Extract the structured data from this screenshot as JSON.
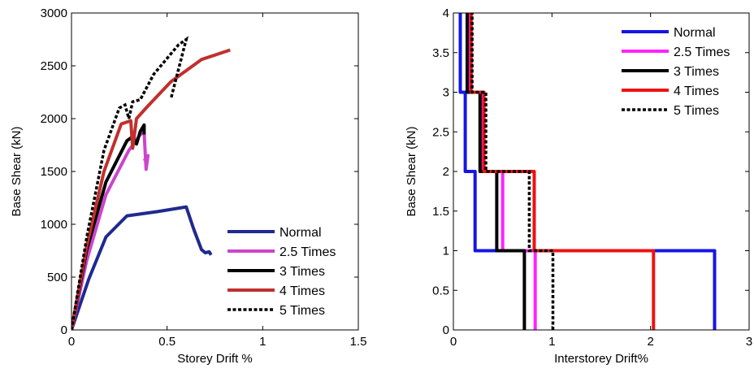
{
  "chart_data": [
    {
      "type": "line",
      "xlabel": "Storey Drift %",
      "ylabel": "Base Shear (kN)",
      "xlim": [
        0,
        1.5
      ],
      "ylim": [
        0,
        3000
      ],
      "xticks": [
        "0",
        "0.5",
        "1",
        "1.5"
      ],
      "yticks": [
        "0",
        "500",
        "1000",
        "1500",
        "2000",
        "2500",
        "3000"
      ],
      "grid": false,
      "legend_position": "bottom-right",
      "series": [
        {
          "name": "Normal",
          "color": "#1f2a8f",
          "dash": "solid",
          "x": [
            0,
            0.09,
            0.18,
            0.29,
            0.45,
            0.6,
            0.64,
            0.68,
            0.7,
            0.72,
            0.73
          ],
          "y": [
            0,
            480,
            880,
            1080,
            1120,
            1165,
            950,
            760,
            730,
            740,
            710
          ]
        },
        {
          "name": "2.5 Times",
          "color": "#cc44cc",
          "dash": "solid",
          "x": [
            0,
            0.08,
            0.18,
            0.3,
            0.36,
            0.38,
            0.39,
            0.4,
            0.38
          ],
          "y": [
            0,
            660,
            1280,
            1700,
            1850,
            1870,
            1520,
            1650,
            1600
          ]
        },
        {
          "name": "3 Times",
          "color": "#000000",
          "dash": "solid",
          "x": [
            0,
            0.08,
            0.18,
            0.29,
            0.32,
            0.34,
            0.36,
            0.38,
            0.38
          ],
          "y": [
            0,
            760,
            1400,
            1790,
            1830,
            1760,
            1880,
            1940,
            1850
          ]
        },
        {
          "name": "4 Times",
          "color": "#c0302e",
          "dash": "solid",
          "x": [
            0,
            0.08,
            0.17,
            0.26,
            0.31,
            0.32,
            0.34,
            0.4,
            0.52,
            0.68,
            0.83
          ],
          "y": [
            0,
            800,
            1500,
            1950,
            1980,
            1720,
            2000,
            2120,
            2350,
            2560,
            2650
          ]
        },
        {
          "name": "5 Times",
          "color": "#000000",
          "dash": "dotted",
          "x": [
            0,
            0.08,
            0.17,
            0.25,
            0.28,
            0.3,
            0.32,
            0.36,
            0.43,
            0.56,
            0.6,
            0.52
          ],
          "y": [
            0,
            880,
            1700,
            2100,
            2130,
            2000,
            2160,
            2180,
            2420,
            2700,
            2750,
            2190
          ]
        }
      ]
    },
    {
      "type": "line",
      "xlabel": "Interstorey Drift%",
      "ylabel": "Base Shear (kN)",
      "xlim": [
        0,
        3
      ],
      "ylim": [
        0,
        4
      ],
      "xticks": [
        "0",
        "1",
        "2",
        "3"
      ],
      "yticks": [
        "0",
        "0.5",
        "1",
        "1.5",
        "2",
        "2.5",
        "3",
        "3.5",
        "4"
      ],
      "grid": false,
      "legend_position": "top-right",
      "series": [
        {
          "name": "Normal",
          "color": "#1515e6",
          "dash": "solid",
          "x": [
            2.65,
            2.65,
            0.22,
            0.22,
            0.12,
            0.12,
            0.07,
            0.07
          ],
          "y": [
            0,
            1,
            1,
            2,
            2,
            3,
            3,
            4
          ]
        },
        {
          "name": "2.5 Times",
          "color": "#ff22ff",
          "dash": "solid",
          "x": [
            0.83,
            0.83,
            0.5,
            0.5,
            0.3,
            0.3,
            0.16,
            0.16
          ],
          "y": [
            0,
            1,
            1,
            2,
            2,
            3,
            3,
            4
          ]
        },
        {
          "name": "3 Times",
          "color": "#000000",
          "dash": "solid",
          "x": [
            0.72,
            0.72,
            0.44,
            0.44,
            0.27,
            0.27,
            0.14,
            0.14
          ],
          "y": [
            0,
            1,
            1,
            2,
            2,
            3,
            3,
            4
          ]
        },
        {
          "name": "4 Times",
          "color": "#ee1111",
          "dash": "solid",
          "x": [
            2.03,
            2.03,
            0.82,
            0.82,
            0.31,
            0.31,
            0.18,
            0.18
          ],
          "y": [
            0,
            1,
            1,
            2,
            2,
            3,
            3,
            4
          ]
        },
        {
          "name": "5 Times",
          "color": "#000000",
          "dash": "dotted",
          "x": [
            1.01,
            1.01,
            0.77,
            0.77,
            0.33,
            0.33,
            0.19,
            0.19
          ],
          "y": [
            0,
            1,
            1,
            2,
            2,
            3,
            3,
            4
          ]
        }
      ]
    }
  ]
}
